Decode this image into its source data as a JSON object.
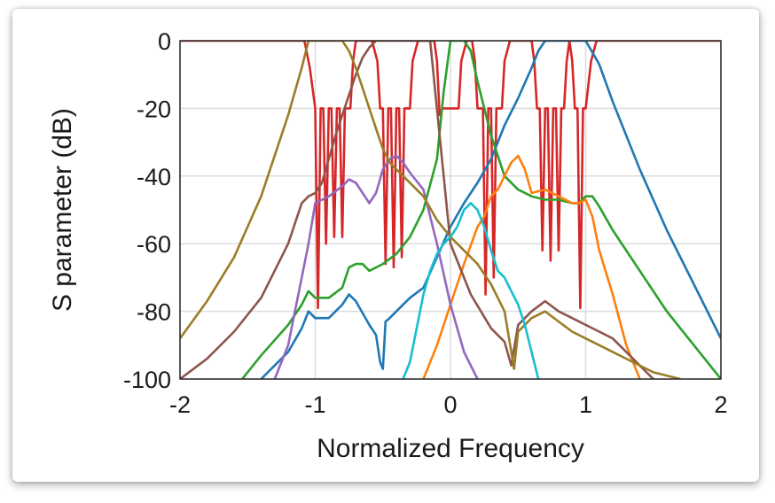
{
  "chart_data": {
    "type": "line",
    "xlabel": "Normalized Frequency",
    "ylabel": "S parameter (dB)",
    "xlim": [
      -2,
      2
    ],
    "ylim": [
      -100,
      0
    ],
    "xticks": [
      "-2",
      "-1",
      "0",
      "1",
      "2"
    ],
    "yticks": [
      "0",
      "-20",
      "-40",
      "-60",
      "-80",
      "-100"
    ],
    "grid": true,
    "series": [
      {
        "color": "#d62728",
        "x": [
          -2.0,
          -1.08,
          -1.04,
          -1.0,
          -0.98,
          -0.96,
          -0.94,
          -0.92,
          -0.9,
          -0.88,
          -0.86,
          -0.84,
          -0.82,
          -0.8,
          -0.78,
          -0.76,
          -0.74,
          -0.72,
          -0.7,
          -0.66,
          -0.62,
          -0.58,
          -0.54,
          -0.52,
          -0.5,
          -0.48,
          -0.46,
          -0.44,
          -0.42,
          -0.4,
          -0.38,
          -0.36,
          -0.34,
          -0.32,
          -0.3,
          -0.28,
          -0.24,
          -0.2,
          -0.16,
          -0.12,
          -0.1,
          -0.08,
          -0.06,
          -0.04,
          0.0,
          0.04,
          0.06,
          0.08,
          0.12,
          0.16,
          0.18,
          0.2,
          0.22,
          0.24,
          0.26,
          0.28,
          0.3,
          0.32,
          0.34,
          0.36,
          0.38,
          0.4,
          0.44,
          0.48,
          0.52,
          0.56,
          0.6,
          0.62,
          0.64,
          0.66,
          0.68,
          0.7,
          0.72,
          0.74,
          0.76,
          0.78,
          0.8,
          0.82,
          0.84,
          0.86,
          0.88,
          0.9,
          0.92,
          0.94,
          0.96,
          0.98,
          1.0,
          1.04,
          1.08,
          2.0
        ],
        "values": [
          0,
          0,
          -8,
          -20,
          -79,
          -20,
          -20,
          -60,
          -20,
          -20,
          -58,
          -20,
          -20,
          -58,
          -20,
          -20,
          -20,
          -6,
          0,
          0,
          0,
          0,
          -6,
          -20,
          -20,
          -66,
          -20,
          -20,
          -67,
          -20,
          -20,
          -64,
          -20,
          -20,
          -20,
          -6,
          0,
          0,
          0,
          0,
          -6,
          -22,
          -20,
          -20,
          -20,
          -20,
          -20,
          -6,
          0,
          0,
          -6,
          -20,
          -20,
          -20,
          -75,
          -20,
          -20,
          -70,
          -20,
          -20,
          -20,
          -6,
          0,
          0,
          0,
          0,
          0,
          -6,
          -20,
          -20,
          -62,
          -20,
          -20,
          -65,
          -20,
          -20,
          -62,
          -20,
          -20,
          -6,
          0,
          -6,
          -20,
          -20,
          -79,
          -20,
          -20,
          -6,
          0,
          0
        ]
      },
      {
        "color": "#1f77b4",
        "x": [
          -2.0,
          -1.4,
          -1.2,
          -1.1,
          -1.05,
          -1.0,
          -0.9,
          -0.8,
          -0.75,
          -0.7,
          -0.6,
          -0.55,
          -0.52,
          -0.5,
          -0.48,
          -0.45,
          -0.4,
          -0.3,
          -0.2,
          -0.1,
          0.0,
          0.1,
          0.2,
          0.3,
          0.4,
          0.5,
          0.6,
          0.65,
          0.7,
          0.75,
          0.85,
          0.95,
          1.0,
          1.1,
          1.2,
          1.4,
          1.6,
          1.8,
          2.0
        ],
        "values": [
          -130,
          -100,
          -92,
          -85,
          -80,
          -82,
          -82,
          -78,
          -75,
          -77,
          -84,
          -87,
          -95,
          -97,
          -83,
          -82,
          -80,
          -76,
          -73,
          -64,
          -55,
          -48,
          -42,
          -35,
          -25,
          -17,
          -8,
          -3,
          0,
          0,
          0,
          0,
          0,
          -7,
          -18,
          -38,
          -56,
          -72,
          -88
        ]
      },
      {
        "color": "#2ca02c",
        "x": [
          -2.0,
          -1.6,
          -1.4,
          -1.2,
          -1.1,
          -1.05,
          -1.0,
          -0.9,
          -0.8,
          -0.75,
          -0.7,
          -0.65,
          -0.6,
          -0.5,
          -0.4,
          -0.3,
          -0.2,
          -0.1,
          -0.05,
          0.0,
          0.05,
          0.1,
          0.15,
          0.2,
          0.3,
          0.4,
          0.5,
          0.6,
          0.7,
          0.8,
          0.9,
          0.95,
          1.0,
          1.05,
          1.1,
          1.2,
          1.4,
          1.6,
          1.8,
          2.0
        ],
        "values": [
          -130,
          -103,
          -93,
          -84,
          -78,
          -74,
          -76,
          -76,
          -73,
          -67,
          -66,
          -66,
          -68,
          -66,
          -63,
          -58,
          -50,
          -35,
          -15,
          0,
          0,
          0,
          -3,
          -12,
          -28,
          -40,
          -44,
          -46,
          -47,
          -47,
          -48,
          -48,
          -46,
          -46,
          -49,
          -56,
          -68,
          -80,
          -90,
          -100
        ]
      },
      {
        "color": "#ff7f0e",
        "x": [
          -0.2,
          -0.1,
          0.0,
          0.1,
          0.2,
          0.25,
          0.3,
          0.35,
          0.4,
          0.45,
          0.5,
          0.55,
          0.6,
          0.7,
          0.8,
          0.9,
          0.95,
          1.0,
          1.05,
          1.1,
          1.2,
          1.3,
          1.4
        ],
        "values": [
          -100,
          -90,
          -78,
          -66,
          -55,
          -52,
          -46,
          -44,
          -40,
          -36,
          -34,
          -38,
          -45,
          -44,
          -46,
          -48,
          -48,
          -47,
          -52,
          -62,
          -75,
          -90,
          -100
        ]
      },
      {
        "color": "#9467bd",
        "x": [
          -1.3,
          -1.2,
          -1.15,
          -1.1,
          -1.05,
          -1.0,
          -0.9,
          -0.8,
          -0.75,
          -0.7,
          -0.6,
          -0.55,
          -0.5,
          -0.45,
          -0.4,
          -0.35,
          -0.3,
          -0.2,
          -0.1,
          0.0,
          0.1,
          0.2
        ],
        "values": [
          -100,
          -90,
          -80,
          -70,
          -60,
          -48,
          -46,
          -43,
          -41,
          -42,
          -48,
          -45,
          -38,
          -35,
          -34,
          -36,
          -39,
          -44,
          -60,
          -78,
          -92,
          -100
        ]
      },
      {
        "color": "#8c564b",
        "x": [
          -2.0,
          -1.8,
          -1.6,
          -1.4,
          -1.2,
          -1.1,
          -1.05,
          -1.0,
          -0.95,
          -0.9,
          -0.85,
          -0.8,
          -0.75,
          -0.7,
          -0.65,
          -0.6,
          -0.55,
          -0.5,
          -0.45,
          -0.4,
          -0.35,
          -0.3,
          -0.25,
          -0.2,
          -0.15,
          0.0,
          0.15,
          0.3,
          0.4,
          0.45,
          0.5,
          0.55,
          0.6,
          0.7,
          0.8,
          0.9,
          1.0,
          1.1,
          1.2,
          1.3,
          1.4,
          1.5
        ],
        "values": [
          -100,
          -94,
          -86,
          -76,
          -60,
          -48,
          -46,
          -45,
          -42,
          -35,
          -28,
          -22,
          -16,
          -10,
          -5,
          -2,
          0,
          0,
          0,
          0,
          0,
          0,
          0,
          0,
          0,
          -60,
          -75,
          -85,
          -89,
          -96,
          -84,
          -82,
          -80,
          -77,
          -80,
          -82,
          -84,
          -86,
          -88,
          -92,
          -96,
          -100
        ]
      },
      {
        "color": "#9a7d27",
        "x": [
          -2.0,
          -1.8,
          -1.6,
          -1.4,
          -1.2,
          -1.1,
          -1.05,
          -1.0,
          -0.95,
          -0.9,
          -0.85,
          -0.8,
          -0.75,
          -0.7,
          -0.65,
          -0.6,
          -0.55,
          -0.5,
          -0.45,
          -0.4,
          -0.3,
          -0.2,
          -0.1,
          0.0,
          0.1,
          0.2,
          0.3,
          0.4,
          0.45,
          0.47,
          0.5,
          0.55,
          0.6,
          0.7,
          0.8,
          0.9,
          1.0,
          1.1,
          1.2,
          1.3,
          1.5,
          1.7
        ],
        "values": [
          -88,
          -77,
          -64,
          -46,
          -22,
          -8,
          0,
          0,
          0,
          0,
          0,
          0,
          -3,
          -8,
          -14,
          -20,
          -26,
          -32,
          -36,
          -38,
          -42,
          -46,
          -53,
          -58,
          -62,
          -66,
          -72,
          -80,
          -92,
          -97,
          -86,
          -84,
          -82,
          -80,
          -83,
          -86,
          -88,
          -90,
          -92,
          -94,
          -98,
          -100
        ]
      },
      {
        "color": "#17becf",
        "x": [
          -0.35,
          -0.3,
          -0.25,
          -0.2,
          -0.15,
          -0.1,
          -0.05,
          0.0,
          0.05,
          0.1,
          0.15,
          0.2,
          0.25,
          0.3,
          0.35,
          0.4,
          0.45,
          0.5,
          0.55,
          0.6,
          0.65
        ],
        "values": [
          -100,
          -95,
          -85,
          -75,
          -68,
          -63,
          -60,
          -58,
          -55,
          -50,
          -48,
          -50,
          -55,
          -62,
          -68,
          -70,
          -74,
          -78,
          -84,
          -92,
          -100
        ]
      }
    ]
  }
}
